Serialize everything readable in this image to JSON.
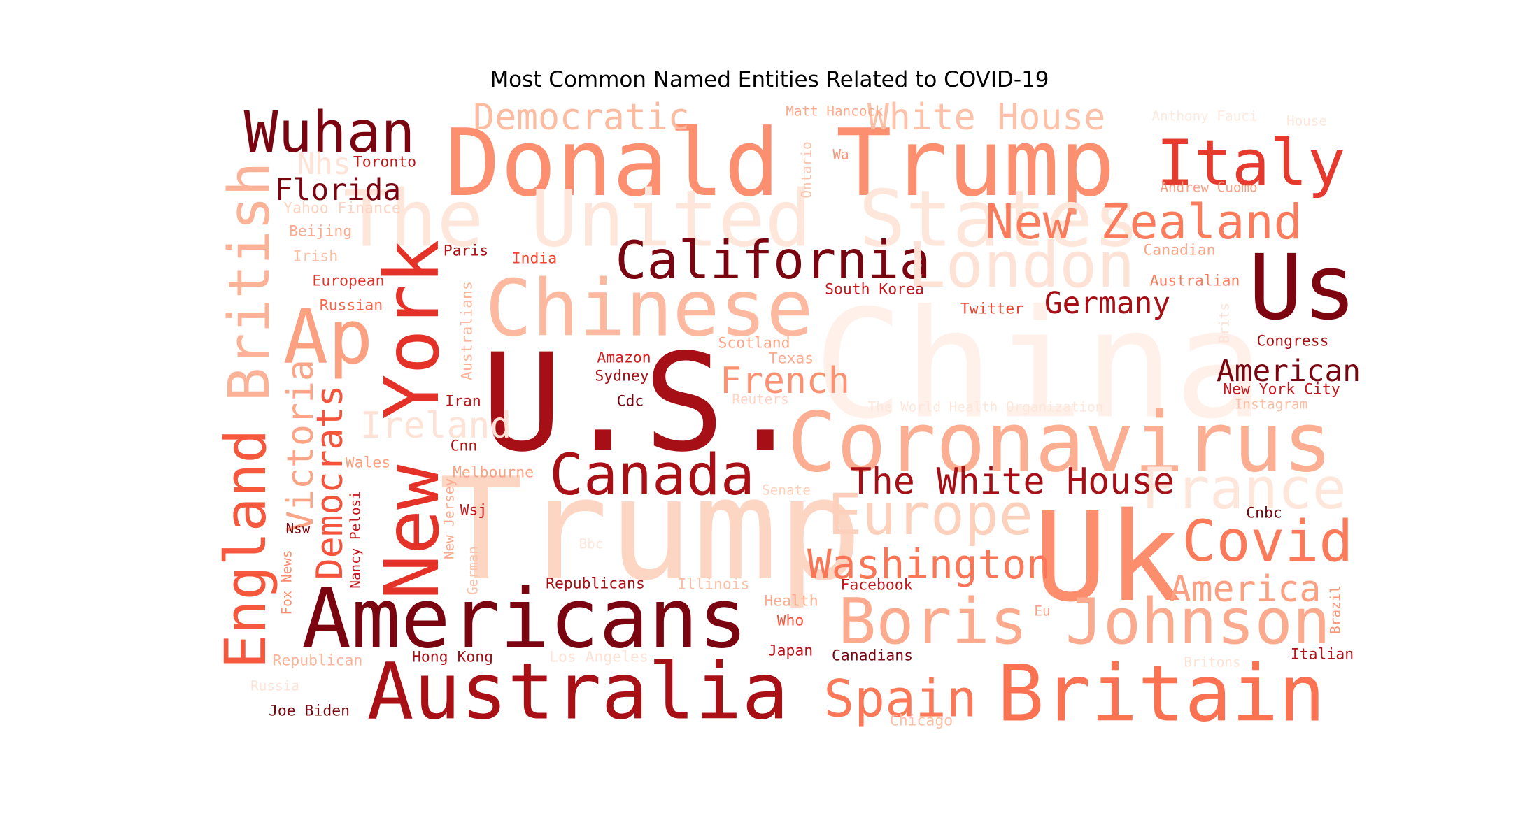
{
  "chart_data": {
    "type": "wordcloud",
    "title": "Most Common Named Entities Related to COVID-19",
    "colormap": "Reds",
    "background": "#ffffff",
    "words": [
      {
        "text": "China",
        "relative_size": 1.0,
        "color": "#fff0ea"
      },
      {
        "text": "Trump",
        "relative_size": 0.94,
        "color": "#fdd5c3"
      },
      {
        "text": "U.S.",
        "relative_size": 0.9,
        "color": "#a50f15"
      },
      {
        "text": "Uk",
        "relative_size": 0.82,
        "color": "#fc8d6d"
      },
      {
        "text": "Donald Trump",
        "relative_size": 0.62,
        "color": "#fc8f6f"
      },
      {
        "text": "Coronavirus",
        "relative_size": 0.55,
        "color": "#fcae92"
      },
      {
        "text": "The United States",
        "relative_size": 0.52,
        "color": "#fee6da"
      },
      {
        "text": "Americans",
        "relative_size": 0.55,
        "color": "#7a0510"
      },
      {
        "text": "Chinese",
        "relative_size": 0.52,
        "color": "#fcb99f"
      },
      {
        "text": "Australia",
        "relative_size": 0.52,
        "color": "#a91016"
      },
      {
        "text": "Britain",
        "relative_size": 0.52,
        "color": "#fb7252"
      },
      {
        "text": "Us",
        "relative_size": 0.6,
        "color": "#7d0510"
      },
      {
        "text": "New York",
        "relative_size": 0.5,
        "color": "#e53228"
      },
      {
        "text": "Ap",
        "relative_size": 0.5,
        "color": "#fca082"
      },
      {
        "text": "Italy",
        "relative_size": 0.42,
        "color": "#e63a2f"
      },
      {
        "text": "Boris Johnson",
        "relative_size": 0.42,
        "color": "#fcaa8d"
      },
      {
        "text": "Canada",
        "relative_size": 0.38,
        "color": "#a91016"
      },
      {
        "text": "California",
        "relative_size": 0.35,
        "color": "#7a0510"
      },
      {
        "text": "London",
        "relative_size": 0.42,
        "color": "#fee2d5"
      },
      {
        "text": "France",
        "relative_size": 0.38,
        "color": "#fee6da"
      },
      {
        "text": "Europe",
        "relative_size": 0.38,
        "color": "#fdd0bc"
      },
      {
        "text": "Covid",
        "relative_size": 0.38,
        "color": "#fb7a5a"
      },
      {
        "text": "Wuhan",
        "relative_size": 0.38,
        "color": "#7a0510"
      },
      {
        "text": "England",
        "relative_size": 0.38,
        "color": "#f6583e"
      },
      {
        "text": "British",
        "relative_size": 0.38,
        "color": "#fcb296"
      },
      {
        "text": "Spain",
        "relative_size": 0.34,
        "color": "#fb7858"
      },
      {
        "text": "New Zealand",
        "relative_size": 0.32,
        "color": "#fb7c5c"
      },
      {
        "text": "Washington",
        "relative_size": 0.27,
        "color": "#fb7656"
      },
      {
        "text": "Democratic",
        "relative_size": 0.24,
        "color": "#fcbca2"
      },
      {
        "text": "White House",
        "relative_size": 0.24,
        "color": "#fcc1a8"
      },
      {
        "text": "French",
        "relative_size": 0.24,
        "color": "#fc9272"
      },
      {
        "text": "Victoria",
        "relative_size": 0.24,
        "color": "#fca486"
      },
      {
        "text": "Democrats",
        "relative_size": 0.24,
        "color": "#f5533b"
      },
      {
        "text": "Ireland",
        "relative_size": 0.24,
        "color": "#fee2d5"
      },
      {
        "text": "The White House",
        "relative_size": 0.24,
        "color": "#a50f15"
      },
      {
        "text": "America",
        "relative_size": 0.24,
        "color": "#fca082"
      },
      {
        "text": "Florida",
        "relative_size": 0.2,
        "color": "#7a0510"
      },
      {
        "text": "Germany",
        "relative_size": 0.2,
        "color": "#a50f15"
      },
      {
        "text": "American",
        "relative_size": 0.2,
        "color": "#7a0510"
      },
      {
        "text": "Nhs",
        "relative_size": 0.2,
        "color": "#fee2d5"
      },
      {
        "text": "Toronto",
        "relative_size": 0.1,
        "color": "#c1181c"
      },
      {
        "text": "Yahoo Finance",
        "relative_size": 0.1,
        "color": "#fdd4c2"
      },
      {
        "text": "Beijing",
        "relative_size": 0.1,
        "color": "#fcab8f"
      },
      {
        "text": "Irish",
        "relative_size": 0.1,
        "color": "#fcbea5"
      },
      {
        "text": "European",
        "relative_size": 0.1,
        "color": "#e0352b"
      },
      {
        "text": "Russian",
        "relative_size": 0.1,
        "color": "#f8654a"
      },
      {
        "text": "Paris",
        "relative_size": 0.1,
        "color": "#b11218"
      },
      {
        "text": "India",
        "relative_size": 0.1,
        "color": "#f0442f"
      },
      {
        "text": "Matt Hancock",
        "relative_size": 0.09,
        "color": "#fcaa8d"
      },
      {
        "text": "Ontario",
        "relative_size": 0.09,
        "color": "#fcc2aa"
      },
      {
        "text": "Wa",
        "relative_size": 0.09,
        "color": "#fc9576"
      },
      {
        "text": "Anthony Fauci",
        "relative_size": 0.09,
        "color": "#fee9df"
      },
      {
        "text": "House",
        "relative_size": 0.09,
        "color": "#fee6da"
      },
      {
        "text": "Andrew Cuomo",
        "relative_size": 0.09,
        "color": "#fca082"
      },
      {
        "text": "Canadian",
        "relative_size": 0.1,
        "color": "#fca286"
      },
      {
        "text": "Australian",
        "relative_size": 0.1,
        "color": "#fb7c5c"
      },
      {
        "text": "South Korea",
        "relative_size": 0.1,
        "color": "#c4161c"
      },
      {
        "text": "Twitter",
        "relative_size": 0.1,
        "color": "#f03f2e"
      },
      {
        "text": "Brits",
        "relative_size": 0.09,
        "color": "#fee2d5"
      },
      {
        "text": "Congress",
        "relative_size": 0.1,
        "color": "#a50f15"
      },
      {
        "text": "Australians",
        "relative_size": 0.1,
        "color": "#fcb499"
      },
      {
        "text": "Amazon",
        "relative_size": 0.1,
        "color": "#d01d1f"
      },
      {
        "text": "Sydney",
        "relative_size": 0.1,
        "color": "#a50f15"
      },
      {
        "text": "Scotland",
        "relative_size": 0.1,
        "color": "#fca286"
      },
      {
        "text": "Texas",
        "relative_size": 0.1,
        "color": "#fcab8f"
      },
      {
        "text": "Reuters",
        "relative_size": 0.09,
        "color": "#fdd3c1"
      },
      {
        "text": "The World Health Organization",
        "relative_size": 0.09,
        "color": "#fee6da"
      },
      {
        "text": "New York City",
        "relative_size": 0.1,
        "color": "#c4161c"
      },
      {
        "text": "Instagram",
        "relative_size": 0.09,
        "color": "#fcbea5"
      },
      {
        "text": "Iran",
        "relative_size": 0.1,
        "color": "#bc141a"
      },
      {
        "text": "Cdc",
        "relative_size": 0.1,
        "color": "#7a0510"
      },
      {
        "text": "Cnn",
        "relative_size": 0.1,
        "color": "#b11218"
      },
      {
        "text": "Wales",
        "relative_size": 0.1,
        "color": "#fca082"
      },
      {
        "text": "Melbourne",
        "relative_size": 0.1,
        "color": "#fca082"
      },
      {
        "text": "Senate",
        "relative_size": 0.09,
        "color": "#fdd0bc"
      },
      {
        "text": "Wsj",
        "relative_size": 0.1,
        "color": "#c4161c"
      },
      {
        "text": "Nsw",
        "relative_size": 0.09,
        "color": "#7a0510"
      },
      {
        "text": "Fox News",
        "relative_size": 0.09,
        "color": "#fc8e6e"
      },
      {
        "text": "Nancy Pelosi",
        "relative_size": 0.09,
        "color": "#c4161c"
      },
      {
        "text": "New Jersey",
        "relative_size": 0.09,
        "color": "#fca98c"
      },
      {
        "text": "German",
        "relative_size": 0.09,
        "color": "#fcc2aa"
      },
      {
        "text": "Bbc",
        "relative_size": 0.09,
        "color": "#fee6da"
      },
      {
        "text": "Republicans",
        "relative_size": 0.1,
        "color": "#a50f15"
      },
      {
        "text": "Illinois",
        "relative_size": 0.1,
        "color": "#fcbea5"
      },
      {
        "text": "Facebook",
        "relative_size": 0.1,
        "color": "#c4161c"
      },
      {
        "text": "Health",
        "relative_size": 0.1,
        "color": "#fcab8f"
      },
      {
        "text": "Who",
        "relative_size": 0.1,
        "color": "#f5533b"
      },
      {
        "text": "Eu",
        "relative_size": 0.09,
        "color": "#fca082"
      },
      {
        "text": "Cnbc",
        "relative_size": 0.1,
        "color": "#7a0510"
      },
      {
        "text": "Brazil",
        "relative_size": 0.09,
        "color": "#fc9576"
      },
      {
        "text": "Italian",
        "relative_size": 0.1,
        "color": "#b11218"
      },
      {
        "text": "Britons",
        "relative_size": 0.09,
        "color": "#fee2d5"
      },
      {
        "text": "Republican",
        "relative_size": 0.1,
        "color": "#fcb499"
      },
      {
        "text": "Hong Kong",
        "relative_size": 0.1,
        "color": "#a50f15"
      },
      {
        "text": "Los Angeles",
        "relative_size": 0.1,
        "color": "#fee2d5"
      },
      {
        "text": "Japan",
        "relative_size": 0.1,
        "color": "#b11218"
      },
      {
        "text": "Canadians",
        "relative_size": 0.1,
        "color": "#7a0510"
      },
      {
        "text": "Chicago",
        "relative_size": 0.1,
        "color": "#fcbea5"
      },
      {
        "text": "Russia",
        "relative_size": 0.09,
        "color": "#fee2d5"
      },
      {
        "text": "Joe Biden",
        "relative_size": 0.1,
        "color": "#7a0510"
      }
    ]
  }
}
